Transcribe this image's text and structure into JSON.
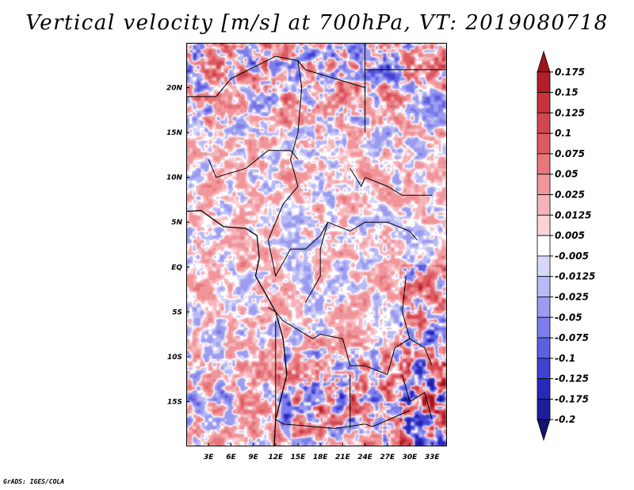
{
  "title": "Vertical velocity [m/s] at 700hPa, VT: 2019080718",
  "footer": "GrADS: IGES/COLA",
  "chart_data": {
    "type": "heatmap",
    "title": "Vertical velocity [m/s] at 700hPa, VT: 2019080718",
    "variable": "Vertical velocity",
    "units": "m/s",
    "level": "700hPa",
    "valid_time": "2019080718",
    "xlabel": "",
    "ylabel": "",
    "lon_range": [
      0,
      35
    ],
    "lat_range": [
      -20,
      25
    ],
    "x_ticks": [
      {
        "value": 3,
        "label": "3E"
      },
      {
        "value": 6,
        "label": "6E"
      },
      {
        "value": 9,
        "label": "9E"
      },
      {
        "value": 12,
        "label": "12E"
      },
      {
        "value": 15,
        "label": "15E"
      },
      {
        "value": 18,
        "label": "18E"
      },
      {
        "value": 21,
        "label": "21E"
      },
      {
        "value": 24,
        "label": "24E"
      },
      {
        "value": 27,
        "label": "27E"
      },
      {
        "value": 30,
        "label": "30E"
      },
      {
        "value": 33,
        "label": "33E"
      }
    ],
    "y_ticks": [
      {
        "value": 20,
        "label": "20N"
      },
      {
        "value": 15,
        "label": "15N"
      },
      {
        "value": 10,
        "label": "10N"
      },
      {
        "value": 5,
        "label": "5N"
      },
      {
        "value": 0,
        "label": "EQ"
      },
      {
        "value": -5,
        "label": "5S"
      },
      {
        "value": -10,
        "label": "10S"
      },
      {
        "value": -15,
        "label": "15S"
      }
    ],
    "colorbar": {
      "labels": [
        "0.175",
        "0.15",
        "0.125",
        "0.1",
        "0.075",
        "0.05",
        "0.025",
        "0.0125",
        "0.005",
        "-0.005",
        "-0.0125",
        "-0.025",
        "-0.05",
        "-0.075",
        "-0.1",
        "-0.125",
        "-0.175",
        "-0.2"
      ],
      "colors": [
        "#a0141e",
        "#b41e28",
        "#c8323c",
        "#d24650",
        "#dc5a64",
        "#e6787d",
        "#f0969b",
        "#f5b4b9",
        "#fad2d7",
        "#ffffff",
        "#d7d7fa",
        "#b9b9f5",
        "#9b9bf0",
        "#7d7deb",
        "#5f5fe1",
        "#4141d2",
        "#2828b9",
        "#1e1e9b",
        "#14146e"
      ],
      "extend": "both"
    },
    "grid": false,
    "legend": "right"
  }
}
